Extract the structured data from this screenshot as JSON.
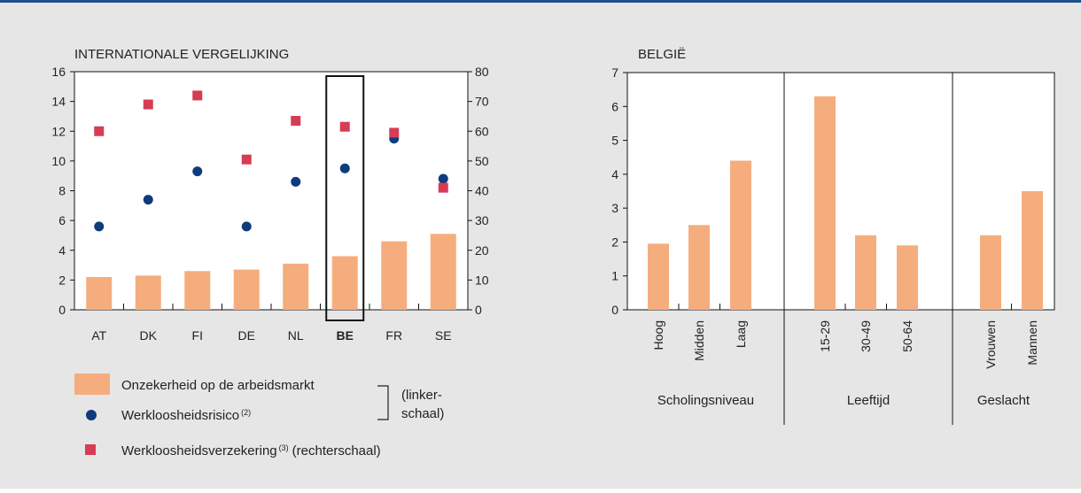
{
  "colors": {
    "background": "#e6e6e6",
    "top_rule": "#1f4e8c",
    "bar": "#f5ad7d",
    "dot": "#0e3b7c",
    "square": "#d63c54",
    "highlight_box": "#111111"
  },
  "chart_data": [
    {
      "type": "bar",
      "title": "INTERNATIONALE VERGELIJKING",
      "categories": [
        "AT",
        "DK",
        "FI",
        "DE",
        "NL",
        "BE",
        "FR",
        "SE"
      ],
      "highlighted_category": "BE",
      "left_ylim": [
        0,
        16
      ],
      "left_ticks": [
        "0",
        "2",
        "4",
        "6",
        "8",
        "10",
        "12",
        "14",
        "16"
      ],
      "right_ylim": [
        0,
        80
      ],
      "right_ticks": [
        "0",
        "10",
        "20",
        "30",
        "40",
        "50",
        "60",
        "70",
        "80"
      ],
      "grid": false,
      "series": [
        {
          "name": "Onzekerheid op de arbeidsmarkt",
          "type": "bar",
          "axis": "left",
          "values": [
            2.2,
            2.3,
            2.6,
            2.7,
            3.1,
            3.6,
            4.6,
            5.1
          ]
        },
        {
          "name": "Werkloosheidsrisico",
          "type": "scatter",
          "marker": "circle",
          "axis": "left",
          "values": [
            5.6,
            7.4,
            9.3,
            5.6,
            8.6,
            9.5,
            11.5,
            8.8
          ]
        },
        {
          "name": "Werkloosheidsverzekering",
          "type": "scatter",
          "marker": "square",
          "axis": "right",
          "values": [
            60,
            69,
            72,
            50.5,
            63.5,
            61.5,
            59.5,
            41
          ]
        }
      ],
      "legend": {
        "placement": "bottom",
        "items": [
          {
            "marker": "bar",
            "label": "Onzekerheid op de arbeidsmarkt"
          },
          {
            "marker": "circle",
            "label": "Werkloosheidsrisico",
            "sup": "(2)"
          },
          {
            "marker": "square",
            "label": "Werkloosheidsverzekering",
            "sup": "(3)",
            "suffix": "(rechterschaal)"
          }
        ],
        "bracket_line1": "(linker-",
        "bracket_line2": "schaal)"
      }
    },
    {
      "type": "bar",
      "title": "BELGIË",
      "ylim": [
        0,
        7
      ],
      "y_ticks": [
        "0",
        "1",
        "2",
        "3",
        "4",
        "5",
        "6",
        "7"
      ],
      "grid": false,
      "groups": [
        {
          "label": "Scholingsniveau",
          "categories": [
            "Hoog",
            "Midden",
            "Laag"
          ],
          "values": [
            1.95,
            2.5,
            4.4
          ]
        },
        {
          "label": "Leeftijd",
          "categories": [
            "15-29",
            "30-49",
            "50-64"
          ],
          "values": [
            6.3,
            2.2,
            1.9
          ]
        },
        {
          "label": "Geslacht",
          "categories": [
            "Vrouwen",
            "Mannen"
          ],
          "values": [
            2.2,
            3.5
          ]
        }
      ]
    }
  ]
}
